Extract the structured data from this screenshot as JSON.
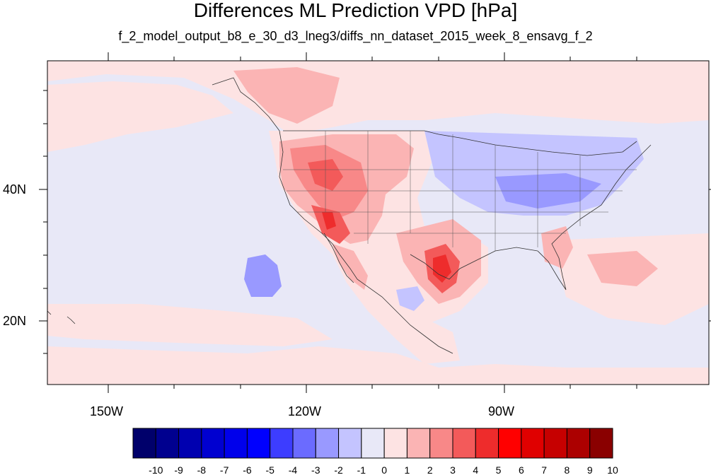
{
  "title": "Differences ML Prediction VPD [hPa]",
  "subtitle": "f_2_model_output_b8_e_30_d3_lneg3/diffs_nn_dataset_2015_week_8_ensavg_f_2",
  "map": {
    "lon_labels": [
      "150W",
      "120W",
      "90W"
    ],
    "lat_labels": [
      "40N",
      "20N"
    ],
    "projection": "cylindrical-equidistant",
    "region": "North America / Eastern Pacific"
  },
  "colorbar": {
    "labels": [
      "-10",
      "-9",
      "-8",
      "-7",
      "-6",
      "-5",
      "-4",
      "-3",
      "-2",
      "-1",
      "0",
      "1",
      "2",
      "3",
      "4",
      "5",
      "6",
      "7",
      "8",
      "9",
      "10"
    ],
    "colors": [
      "#00006b",
      "#00008f",
      "#0000b0",
      "#0000d0",
      "#0000eb",
      "#0000ff",
      "#3d3dff",
      "#6b6bff",
      "#9999ff",
      "#c4c4ff",
      "#e8e8f7",
      "#fde3e3",
      "#fbb4b4",
      "#f88888",
      "#f35a5a",
      "#ee2c2c",
      "#ff0000",
      "#e00000",
      "#c60000",
      "#ac0000",
      "#8a0000"
    ]
  }
}
